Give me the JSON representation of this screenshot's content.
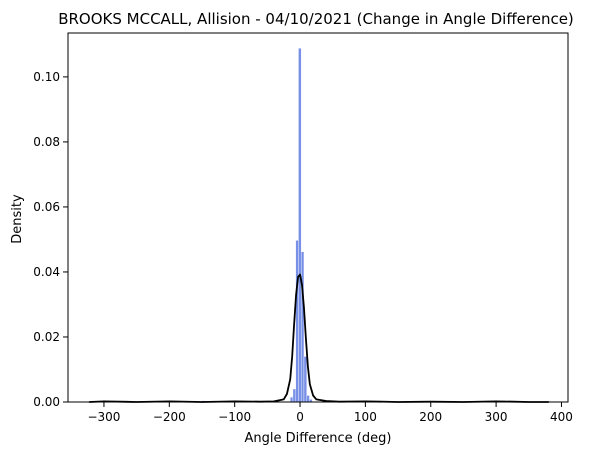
{
  "chart_data": {
    "type": "histogram",
    "title": "BROOKS MCCALL, Allision - 04/10/2021 (Change in Angle Difference)",
    "xlabel": "Angle Difference (deg)",
    "ylabel": "Density",
    "xlim": [
      -355,
      410
    ],
    "ylim": [
      0,
      0.1135
    ],
    "xticks": [
      -300,
      -200,
      -100,
      0,
      100,
      200,
      300,
      400
    ],
    "yticks": [
      0.0,
      0.02,
      0.04,
      0.06,
      0.08,
      0.1
    ],
    "x_tick_labels": [
      "−300",
      "−200",
      "−100",
      "0",
      "100",
      "200",
      "300",
      "400"
    ],
    "y_tick_labels": [
      "0.00",
      "0.02",
      "0.04",
      "0.06",
      "0.08",
      "0.10"
    ],
    "bin_width": 4.2,
    "bars": [
      {
        "x0": -15.0,
        "x1": -10.8,
        "value": 0.0015
      },
      {
        "x0": -10.8,
        "x1": -6.6,
        "value": 0.004
      },
      {
        "x0": -6.6,
        "x1": -2.4,
        "value": 0.0497
      },
      {
        "x0": -2.4,
        "x1": 1.8,
        "value": 0.1088
      },
      {
        "x0": 1.8,
        "x1": 6.0,
        "value": 0.0462
      },
      {
        "x0": 6.0,
        "x1": 10.2,
        "value": 0.014
      },
      {
        "x0": 10.2,
        "x1": 14.4,
        "value": 0.002
      },
      {
        "x0": 14.4,
        "x1": 18.6,
        "value": 0.0008
      },
      {
        "x0": -150.0,
        "x1": -145.8,
        "value": 0.0004
      },
      {
        "x0": -60.0,
        "x1": -55.8,
        "value": 0.0004
      },
      {
        "x0": 35.0,
        "x1": 39.2,
        "value": 0.0006
      },
      {
        "x0": 90.0,
        "x1": 94.2,
        "value": 0.0003
      },
      {
        "x0": 180.0,
        "x1": 184.2,
        "value": 0.0003
      }
    ],
    "kde": {
      "x": [
        -322,
        -300,
        -250,
        -200,
        -150,
        -100,
        -60,
        -40,
        -25,
        -20,
        -15,
        -12,
        -9,
        -6,
        -3,
        0,
        3,
        6,
        9,
        12,
        15,
        20,
        25,
        40,
        60,
        100,
        150,
        200,
        250,
        300,
        350,
        380
      ],
      "y": [
        0.0,
        0.0002,
        0.0,
        0.0002,
        0.0,
        0.0002,
        0.0001,
        0.0002,
        0.0008,
        0.0025,
        0.007,
        0.014,
        0.024,
        0.033,
        0.0385,
        0.0392,
        0.036,
        0.029,
        0.0195,
        0.011,
        0.0055,
        0.002,
        0.0008,
        0.0003,
        0.0001,
        0.0002,
        0.0,
        0.0001,
        0.0,
        0.0002,
        0.0,
        0.0
      ]
    },
    "bar_color": "#4466dd",
    "kde_color": "#000000"
  }
}
